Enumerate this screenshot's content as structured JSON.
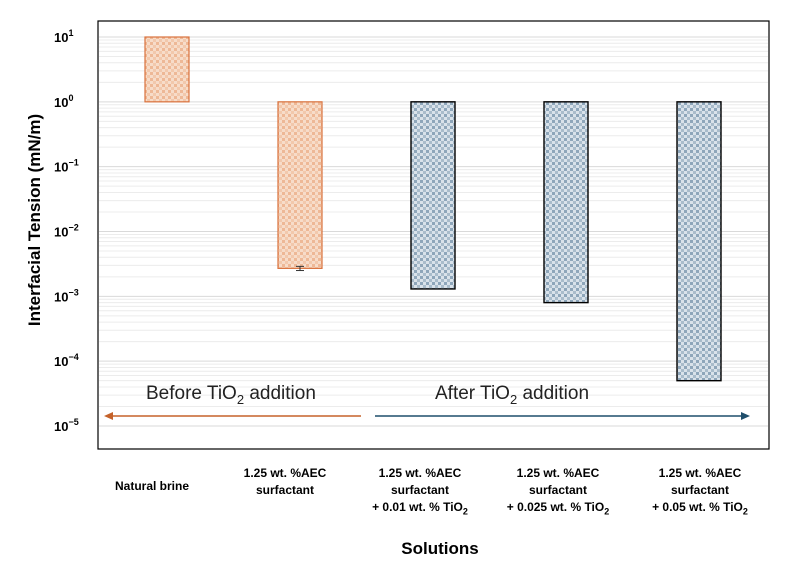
{
  "chart_data": {
    "type": "bar",
    "ylabel": "Interfacial Tension (mN/m)",
    "xlabel": "Solutions",
    "yscale": "log",
    "ylim": [
      1e-05,
      12
    ],
    "baseline": 1,
    "y_ticks": [
      {
        "value": 10.0,
        "base": "10",
        "exp": "1"
      },
      {
        "value": 1.0,
        "base": "10",
        "exp": "0"
      },
      {
        "value": 0.1,
        "base": "10",
        "exp": "−1"
      },
      {
        "value": 0.01,
        "base": "10",
        "exp": "−2"
      },
      {
        "value": 0.001,
        "base": "10",
        "exp": "−3"
      },
      {
        "value": 0.0001,
        "base": "10",
        "exp": "−4"
      },
      {
        "value": 1e-05,
        "base": "10",
        "exp": "−5"
      }
    ],
    "categories": [
      {
        "lines": [
          "Natural brine"
        ],
        "value": 10,
        "group": "before",
        "error": null
      },
      {
        "lines": [
          "1.25 wt. %AEC",
          "surfactant"
        ],
        "value": 0.0027,
        "group": "before",
        "error": 0.0002
      },
      {
        "lines": [
          "1.25 wt. %AEC",
          "surfactant",
          "+ 0.01 wt. % TiO"
        ],
        "sub": "2",
        "value": 0.0013,
        "group": "after",
        "error": null
      },
      {
        "lines": [
          "1.25 wt. %AEC",
          "surfactant",
          "+ 0.025 wt. % TiO"
        ],
        "sub": "2",
        "value": 0.0008,
        "group": "after",
        "error": null
      },
      {
        "lines": [
          "1.25 wt. %AEC",
          "surfactant",
          "+ 0.05 wt. % TiO"
        ],
        "sub": "2",
        "value": 5e-05,
        "group": "after",
        "error": null
      }
    ],
    "annotations": {
      "before": {
        "text": "Before TiO",
        "sub": "2",
        "tail": " addition",
        "arrow_color": "#c5622a"
      },
      "after": {
        "text": "After TiO",
        "sub": "2",
        "tail": " addition",
        "arrow_color": "#1f4e6b"
      }
    },
    "colors": {
      "before_fill": "#f6d8c4",
      "before_edge": "#d9713c",
      "after_fill": "#d3dde6",
      "after_edge": "#000000",
      "grid": "#d9d9d9"
    }
  }
}
